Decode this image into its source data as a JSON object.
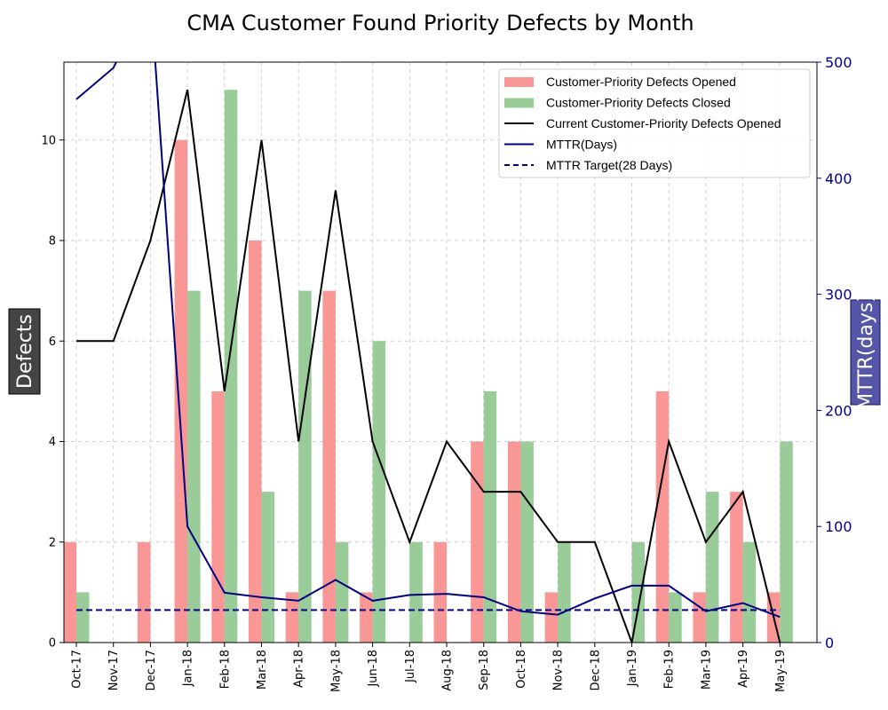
{
  "chart_data": {
    "type": "bar",
    "title": "CMA Customer Found Priority Defects by Month",
    "ylabel": "Defects",
    "y2label": "MTTR(days)",
    "ylim": [
      0,
      11.55
    ],
    "y2lim": [
      0,
      500
    ],
    "yticks": [
      0,
      2,
      4,
      6,
      8,
      10
    ],
    "y2ticks": [
      0,
      100,
      200,
      300,
      400,
      500
    ],
    "grid": true,
    "legend_position": "top-right",
    "categories": [
      "Oct-17",
      "Nov-17",
      "Dec-17",
      "Jan-18",
      "Feb-18",
      "Mar-18",
      "Apr-18",
      "May-18",
      "Jun-18",
      "Jul-18",
      "Aug-18",
      "Sep-18",
      "Oct-18",
      "Nov-18",
      "Dec-18",
      "Jan-19",
      "Feb-19",
      "Mar-19",
      "Apr-19",
      "May-19"
    ],
    "series": [
      {
        "name": "Customer-Priority Defects Opened",
        "kind": "bar",
        "axis": "left",
        "color": "#f99797",
        "values": [
          2,
          0,
          2,
          10,
          5,
          8,
          1,
          7,
          1,
          0,
          2,
          4,
          4,
          1,
          0,
          0,
          5,
          1,
          3,
          1
        ]
      },
      {
        "name": "Customer-Priority Defects Closed",
        "kind": "bar",
        "axis": "left",
        "color": "#99cc99",
        "values": [
          1,
          0,
          0,
          7,
          11,
          3,
          7,
          2,
          6,
          2,
          0,
          5,
          4,
          2,
          0,
          2,
          1,
          3,
          2,
          4
        ]
      },
      {
        "name": "Current Customer-Priority Defects Opened",
        "kind": "line",
        "axis": "left",
        "color": "#000000",
        "values": [
          6,
          6,
          8,
          11,
          5,
          10,
          4,
          9,
          4,
          2,
          4,
          3,
          3,
          2,
          2,
          0,
          4,
          2,
          3,
          0
        ]
      },
      {
        "name": "MTTR(Days)",
        "kind": "line",
        "axis": "right",
        "color": "#00007f",
        "values": [
          468,
          495,
          560,
          100,
          43,
          39,
          36,
          54,
          36,
          41,
          42,
          39,
          27,
          24,
          38,
          49,
          49,
          27,
          34,
          22
        ]
      },
      {
        "name": "MTTR Target(28 Days)",
        "kind": "dashed",
        "axis": "right",
        "color": "#00008b",
        "values": [
          28,
          28,
          28,
          28,
          28,
          28,
          28,
          28,
          28,
          28,
          28,
          28,
          28,
          28,
          28,
          28,
          28,
          28,
          28,
          28
        ]
      }
    ]
  }
}
